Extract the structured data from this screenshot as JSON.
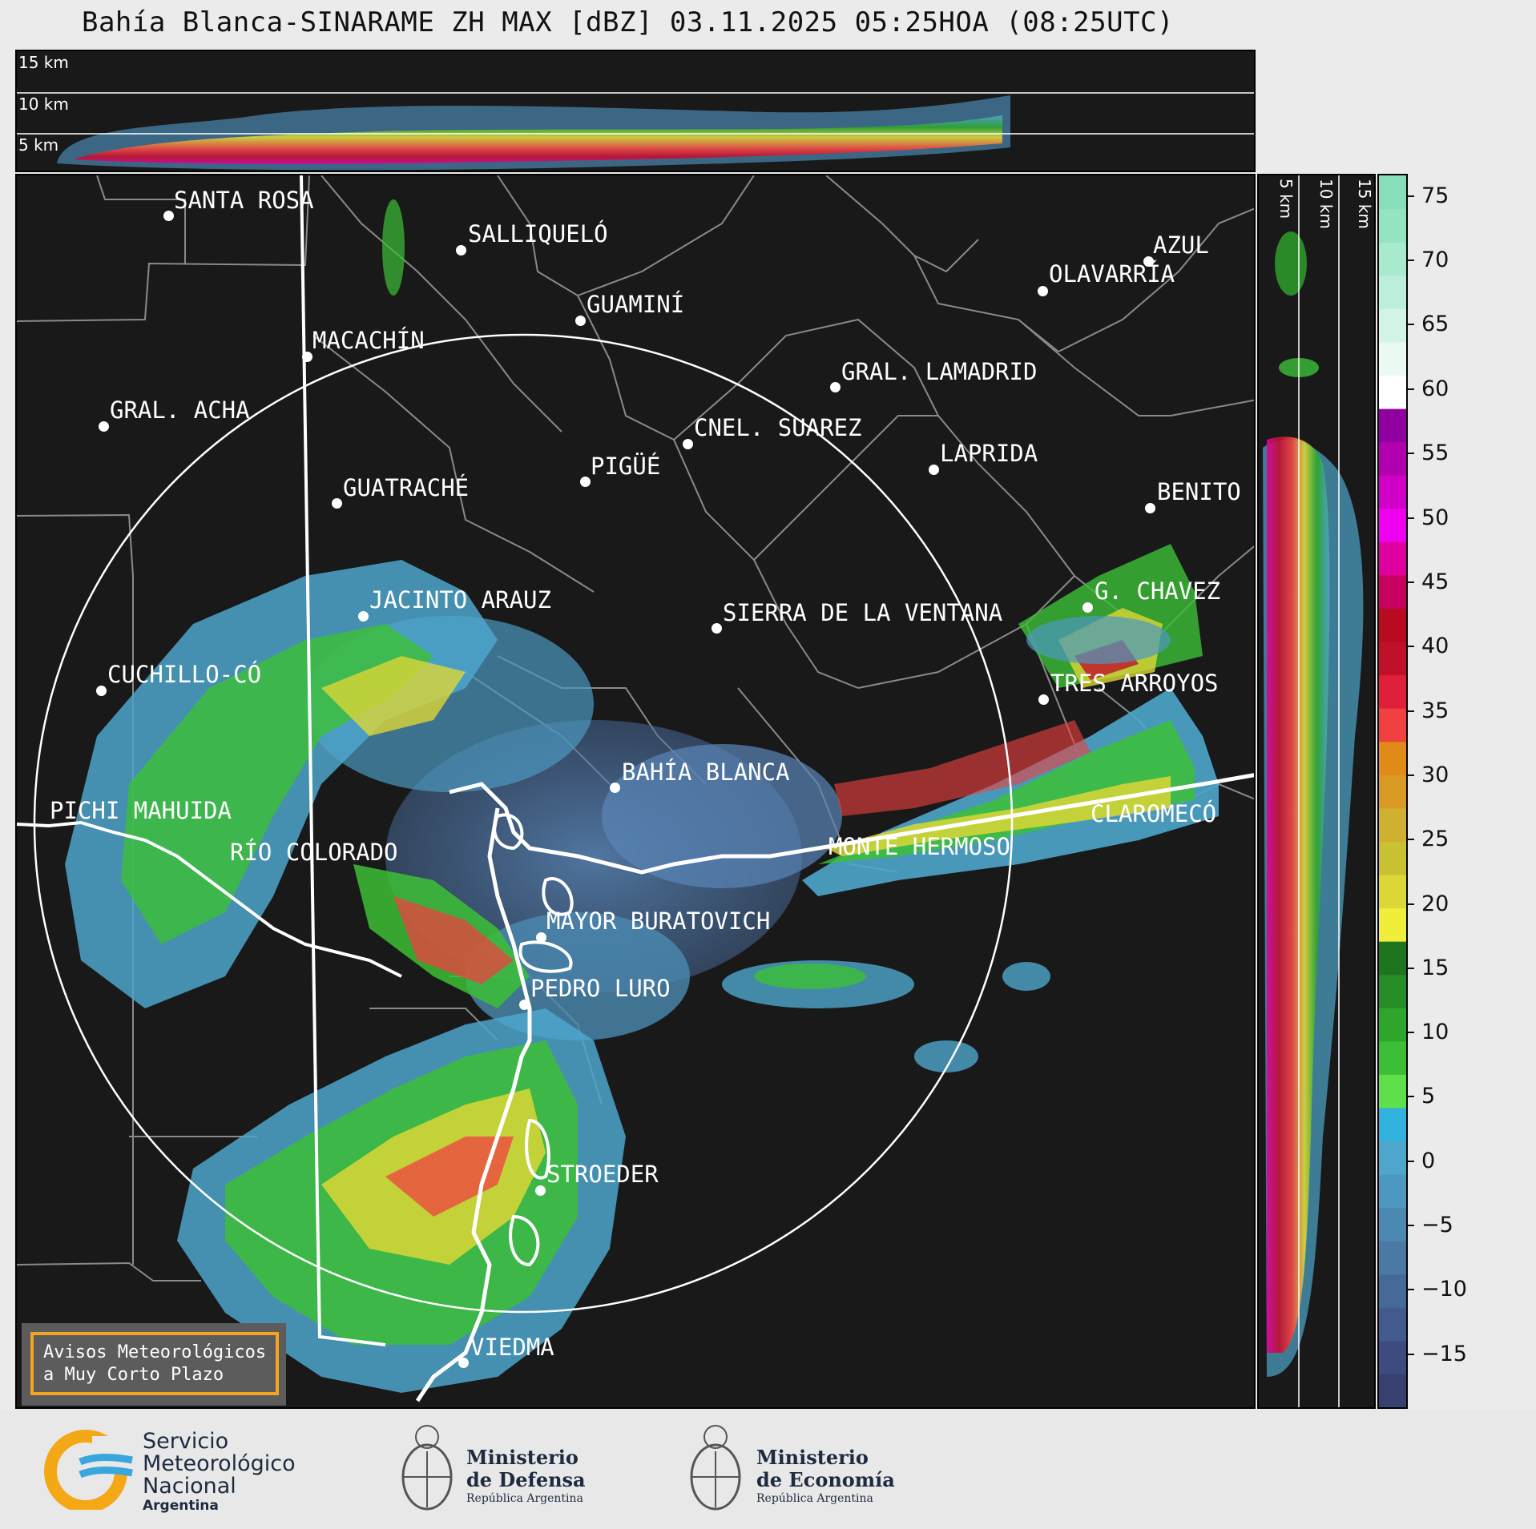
{
  "title": "Bahía Blanca-SINARAME ZH MAX [dBZ] 03.11.2025 05:25HOA (08:25UTC)",
  "top_panel": {
    "height_labels": [
      "15 km",
      "10 km",
      "5 km"
    ]
  },
  "side_panel": {
    "height_labels": [
      "5 km",
      "10 km",
      "15 km"
    ]
  },
  "colorbar": {
    "ticks": [
      "75",
      "70",
      "65",
      "60",
      "55",
      "50",
      "45",
      "40",
      "35",
      "30",
      "25",
      "20",
      "15",
      "10",
      "5",
      "0",
      "−5",
      "−10",
      "−15"
    ],
    "colors": [
      "#384070",
      "#3d4b7e",
      "#425a8c",
      "#456a98",
      "#4a7aa4",
      "#4b89b2",
      "#4d98c0",
      "#4ea6cc",
      "#31b2dc",
      "#5ee04a",
      "#3cbf36",
      "#2ea62c",
      "#278d26",
      "#1f741f",
      "#f0ee3a",
      "#dcd637",
      "#c8c233",
      "#cfb030",
      "#d89a22",
      "#e08a18",
      "#f04040",
      "#e0203a",
      "#c0102c",
      "#b80a20",
      "#c80060",
      "#e000a0",
      "#f000f0",
      "#d000c8",
      "#b000b0",
      "#9000a0",
      "#ffffff",
      "#eafaf2",
      "#d2f4e4",
      "#bcefd9",
      "#a8eacd",
      "#94e4c2",
      "#86dfba"
    ]
  },
  "cities": [
    {
      "name": "SANTA ROSA"
    },
    {
      "name": "SALLIQUELÓ"
    },
    {
      "name": "AZUL"
    },
    {
      "name": "OLAVARRÍA"
    },
    {
      "name": "GUAMINÍ"
    },
    {
      "name": "MACACHÍN"
    },
    {
      "name": "GRAL. LAMADRID"
    },
    {
      "name": "GRAL. ACHA"
    },
    {
      "name": "CNEL. SUAREZ"
    },
    {
      "name": "LAPRIDA"
    },
    {
      "name": "PIGÜÉ"
    },
    {
      "name": "GUATRACHÉ"
    },
    {
      "name": "BENITO"
    },
    {
      "name": "G. CHAVEZ"
    },
    {
      "name": "JACINTO ARAUZ"
    },
    {
      "name": "SIERRA DE LA VENTANA"
    },
    {
      "name": "CUCHILLO-CÓ"
    },
    {
      "name": "TRES ARROYOS"
    },
    {
      "name": "BAHÍA BLANCA"
    },
    {
      "name": "PICHI MAHUIDA"
    },
    {
      "name": "CLAROMECÓ"
    },
    {
      "name": "RÍO COLORADO"
    },
    {
      "name": "MONTE HERMOSO"
    },
    {
      "name": "MAYOR BURATOVICH"
    },
    {
      "name": "PEDRO LURO"
    },
    {
      "name": "STROEDER"
    },
    {
      "name": "VIEDMA"
    }
  ],
  "notice": {
    "line1": "Avisos Meteorológicos",
    "line2": "a Muy Corto Plazo"
  },
  "footer": {
    "smn": {
      "line1": "Servicio",
      "line2": "Meteorológico",
      "line3": "Nacional",
      "line4": "Argentina"
    },
    "defensa": {
      "line1": "Ministerio",
      "line2": "de Defensa",
      "line3": "República Argentina"
    },
    "economia": {
      "line1": "Ministerio",
      "line2": "de Economía",
      "line3": "República Argentina"
    }
  }
}
